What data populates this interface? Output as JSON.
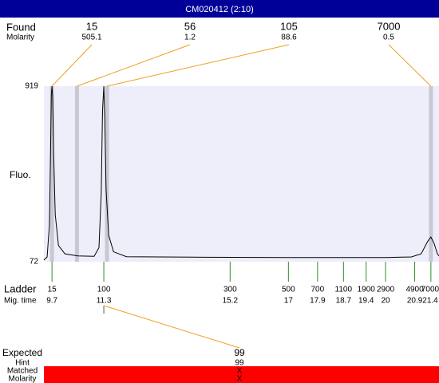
{
  "title_bar": "CM020412 (2:10)",
  "chart_data": {
    "type": "line",
    "y_label": "Fluo.",
    "ylim": [
      72,
      919
    ],
    "yticks": [
      72,
      919
    ],
    "xlim": [
      9.45,
      21.65
    ],
    "background": "#eeeefa",
    "series": [
      {
        "color": "#000000",
        "x": [
          9.45,
          9.55,
          9.62,
          9.66,
          9.68,
          9.7,
          9.72,
          9.75,
          9.8,
          9.9,
          10.1,
          10.5,
          11.0,
          11.15,
          11.22,
          11.26,
          11.3,
          11.33,
          11.37,
          11.45,
          11.6,
          12.0,
          14,
          17,
          20,
          20.8,
          21.1,
          21.3,
          21.4,
          21.5,
          21.6,
          21.65
        ],
        "values": [
          80,
          95,
          250,
          650,
          880,
          919,
          870,
          600,
          300,
          150,
          110,
          100,
          98,
          140,
          400,
          800,
          919,
          760,
          420,
          200,
          120,
          96,
          94,
          92,
          92,
          95,
          110,
          170,
          191,
          160,
          110,
          100
        ]
      }
    ],
    "found": {
      "label": "Found",
      "sublabel": "Molarity",
      "color": "#f0a020",
      "sizes": [
        15,
        56,
        105,
        7000
      ],
      "molarity": [
        505.1,
        1.2,
        88.6,
        0.5
      ]
    },
    "ladder": {
      "label": "Ladder",
      "sublabel": "Mig. time",
      "color": "#2e8b2e",
      "sizes": [
        15,
        100,
        300,
        500,
        700,
        1100,
        1900,
        2900,
        4900,
        7000
      ],
      "mig_times": [
        9.7,
        11.3,
        15.2,
        17,
        17.9,
        18.7,
        19.4,
        20,
        20.9,
        21.4
      ]
    },
    "expected": {
      "label": "Expected",
      "hint_label": "Hint",
      "matched_label": "Matched",
      "molarity_label": "Molarity",
      "size": 99,
      "hint": 99,
      "matched": "X",
      "molarity": "X",
      "bar_color": "#ff0000"
    }
  }
}
